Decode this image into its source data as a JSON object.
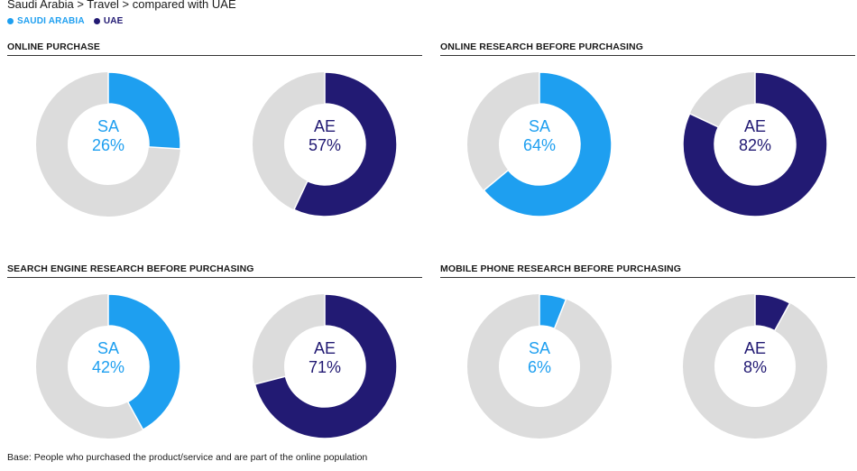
{
  "breadcrumb": "Saudi Arabia > Travel > compared with UAE",
  "legend": [
    {
      "label": "SAUDI ARABIA",
      "color": "#1e9ff0"
    },
    {
      "label": "UAE",
      "color": "#221a73"
    }
  ],
  "colors": {
    "sa": "#1e9ff0",
    "ae": "#221a73",
    "track": "#dcdcdc"
  },
  "chart_data": [
    {
      "type": "pie",
      "title": "ONLINE PURCHASE",
      "slices": [
        {
          "code": "SA",
          "value": 26,
          "label": "26%"
        },
        {
          "code": "AE",
          "value": 57,
          "label": "57%"
        }
      ]
    },
    {
      "type": "pie",
      "title": "ONLINE RESEARCH BEFORE PURCHASING",
      "slices": [
        {
          "code": "SA",
          "value": 64,
          "label": "64%"
        },
        {
          "code": "AE",
          "value": 82,
          "label": "82%"
        }
      ]
    },
    {
      "type": "pie",
      "title": "SEARCH ENGINE RESEARCH BEFORE PURCHASING",
      "slices": [
        {
          "code": "SA",
          "value": 42,
          "label": "42%"
        },
        {
          "code": "AE",
          "value": 71,
          "label": "71%"
        }
      ]
    },
    {
      "type": "pie",
      "title": "MOBILE PHONE RESEARCH BEFORE PURCHASING",
      "slices": [
        {
          "code": "SA",
          "value": 6,
          "label": "6%"
        },
        {
          "code": "AE",
          "value": 8,
          "label": "8%"
        }
      ]
    }
  ],
  "footnote": "Base: People who purchased the product/service and are part of the online population"
}
